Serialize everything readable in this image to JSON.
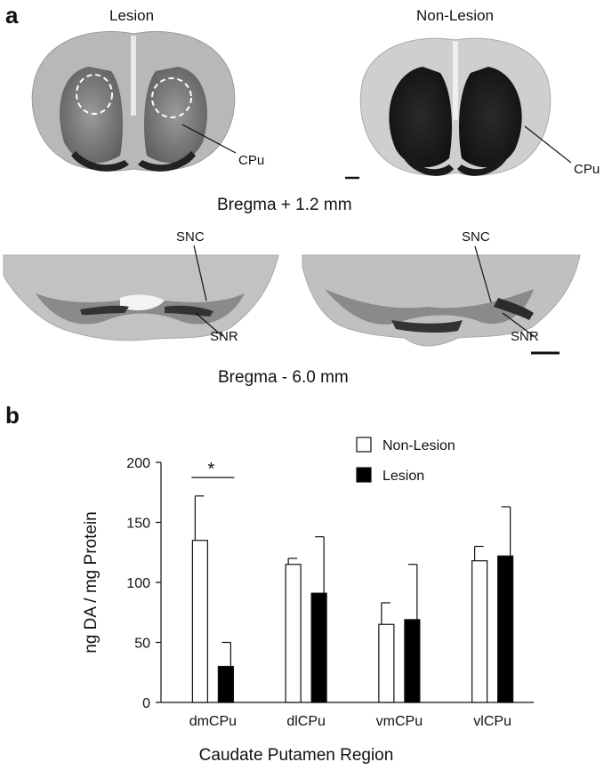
{
  "panel_a": {
    "letter": "a",
    "top_left_label": "Lesion",
    "top_right_label": "Non-Lesion",
    "cpu_label": "CPu",
    "bregma_top": "Bregma + 1.2 mm",
    "snc_label": "SNC",
    "snr_label": "SNR",
    "bregma_bottom": "Bregma - 6.0 mm"
  },
  "panel_b": {
    "letter": "b"
  },
  "chart_data": {
    "type": "bar",
    "categories": [
      "dmCPu",
      "dlCPu",
      "vmCPu",
      "vlCPu"
    ],
    "series": [
      {
        "name": "Non-Lesion",
        "values": [
          135,
          115,
          65,
          118
        ],
        "errors": [
          37,
          5,
          18,
          12
        ],
        "color": "#ffffff"
      },
      {
        "name": "Lesion",
        "values": [
          30,
          91,
          69,
          122
        ],
        "errors": [
          20,
          47,
          46,
          41
        ],
        "color": "#000000"
      }
    ],
    "xlabel": "Caudate Putamen Region",
    "ylabel": "ng DA / mg Protein",
    "ylim": [
      0,
      200
    ],
    "yticks": [
      "0",
      "50",
      "100",
      "150",
      "200"
    ],
    "annotation": "*",
    "legend_position": "top-right",
    "grid": false
  }
}
